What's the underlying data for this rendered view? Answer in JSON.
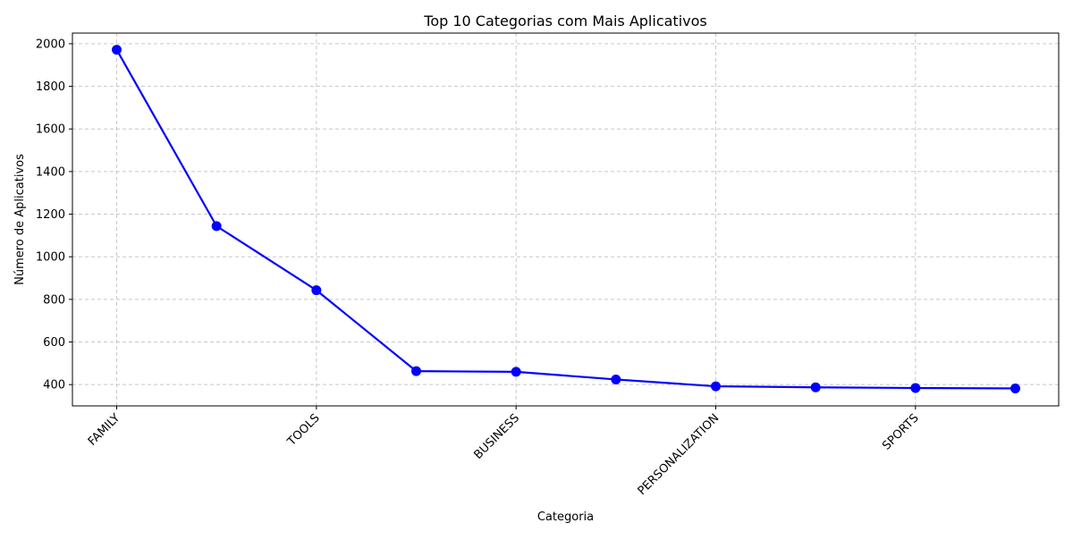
{
  "chart_data": {
    "type": "line",
    "title": "Top 10 Categorias com Mais Aplicativos",
    "xlabel": "Categoria",
    "ylabel": "Número de Aplicativos",
    "categories": [
      "FAMILY",
      "",
      "TOOLS",
      "",
      "BUSINESS",
      "",
      "PERSONALIZATION",
      "",
      "SPORTS",
      ""
    ],
    "x_tick_labels": [
      "FAMILY",
      "TOOLS",
      "BUSINESS",
      "PERSONALIZATION",
      "SPORTS"
    ],
    "y_ticks": [
      400,
      600,
      800,
      1000,
      1200,
      1400,
      1600,
      1800,
      2000
    ],
    "ylim": [
      300,
      2050
    ],
    "grid": true,
    "series": [
      {
        "values": [
          1972,
          1144,
          843,
          463,
          460,
          424,
          392,
          387,
          384,
          382
        ],
        "color": "#0000ff",
        "marker": "circle"
      }
    ]
  }
}
